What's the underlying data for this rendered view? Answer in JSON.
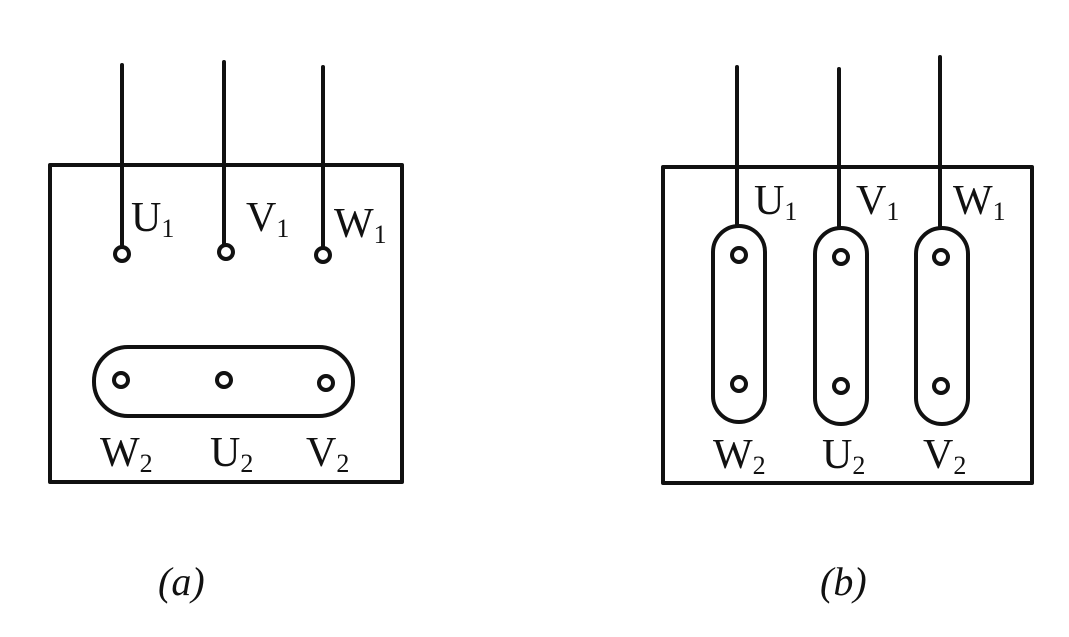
{
  "panels": [
    {
      "id": "a",
      "caption": "(a)",
      "caption_letter": "a",
      "configuration": "star",
      "top_terminals": [
        {
          "letter": "U",
          "sub": "1"
        },
        {
          "letter": "V",
          "sub": "1"
        },
        {
          "letter": "W",
          "sub": "1"
        }
      ],
      "bottom_terminals": [
        {
          "letter": "W",
          "sub": "2"
        },
        {
          "letter": "U",
          "sub": "2"
        },
        {
          "letter": "V",
          "sub": "2"
        }
      ]
    },
    {
      "id": "b",
      "caption": "(b)",
      "caption_letter": "b",
      "configuration": "delta",
      "top_terminals": [
        {
          "letter": "U",
          "sub": "1"
        },
        {
          "letter": "V",
          "sub": "1"
        },
        {
          "letter": "W",
          "sub": "1"
        }
      ],
      "bottom_terminals": [
        {
          "letter": "W",
          "sub": "2"
        },
        {
          "letter": "U",
          "sub": "2"
        },
        {
          "letter": "V",
          "sub": "2"
        }
      ]
    }
  ],
  "colors": {
    "ink": "#111111",
    "background": "#ffffff"
  }
}
